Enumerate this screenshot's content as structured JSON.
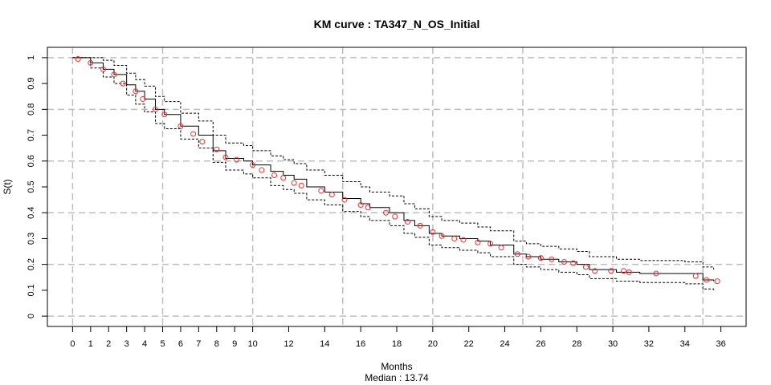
{
  "chart_data": {
    "type": "line",
    "title": "KM curve : TA347_N_OS_Initial",
    "xlabel": "Months",
    "ylabel": "S(t)",
    "subtitle": "Median : 13.74",
    "xlim": [
      -1.4,
      37.4
    ],
    "ylim": [
      -0.04,
      1.04
    ],
    "x_ticks": [
      0,
      1,
      2,
      3,
      4,
      5,
      6,
      7,
      8,
      9,
      10,
      12,
      14,
      16,
      18,
      20,
      22,
      24,
      26,
      28,
      30,
      32,
      34,
      36
    ],
    "y_ticks": [
      0,
      0.1,
      0.2,
      0.3,
      0.4,
      0.5,
      0.6,
      0.7,
      0.8,
      0.9,
      1
    ],
    "x_gridlines": [
      0,
      5,
      10,
      15,
      20,
      25,
      30,
      35
    ],
    "y_gridlines": [
      0,
      0.2,
      0.4,
      0.6,
      0.8,
      1
    ],
    "grid": true,
    "legend": "none",
    "colors": {
      "curve": "#000000",
      "ci": "#000000",
      "censor": "#e8312f",
      "grid": "#bebebe",
      "frame": "#000000"
    },
    "series": [
      {
        "style": "step",
        "x": [
          0,
          1.0,
          1.7,
          2.3,
          3.0,
          3.5,
          4.0,
          4.6,
          5.1,
          6.0,
          7.0,
          7.8,
          8.5,
          9.5,
          10.0,
          11.0,
          11.7,
          12.3,
          13.0,
          14.0,
          15.0,
          16.0,
          16.5,
          17.6,
          18.4,
          19.0,
          19.8,
          20.5,
          21.5,
          22.5,
          23.2,
          24.5,
          25.2,
          26.0,
          27.0,
          28.0,
          28.7,
          30.2,
          31.5,
          34.0,
          35.0,
          35.6
        ],
        "y": [
          1.0,
          0.98,
          0.955,
          0.935,
          0.895,
          0.87,
          0.84,
          0.8,
          0.78,
          0.735,
          0.7,
          0.64,
          0.61,
          0.6,
          0.585,
          0.56,
          0.545,
          0.53,
          0.5,
          0.48,
          0.455,
          0.435,
          0.42,
          0.4,
          0.37,
          0.35,
          0.32,
          0.31,
          0.3,
          0.29,
          0.275,
          0.24,
          0.23,
          0.22,
          0.21,
          0.2,
          0.18,
          0.17,
          0.165,
          0.165,
          0.14,
          0.135
        ]
      },
      {
        "style": "step-dashed",
        "x": [
          0,
          1.0,
          1.7,
          2.3,
          3.0,
          3.5,
          4.0,
          4.6,
          5.1,
          6.0,
          7.0,
          7.8,
          8.5,
          9.5,
          10.0,
          11.0,
          11.7,
          12.3,
          13.0,
          14.0,
          15.0,
          16.0,
          16.5,
          17.6,
          18.4,
          19.0,
          19.8,
          20.5,
          21.5,
          22.5,
          23.2,
          24.5,
          25.2,
          26.0,
          27.0,
          28.0,
          28.7,
          30.2,
          31.5,
          34.0,
          35.0,
          35.6
        ],
        "y": [
          1.0,
          1.0,
          0.99,
          0.97,
          0.94,
          0.915,
          0.89,
          0.85,
          0.83,
          0.785,
          0.755,
          0.7,
          0.67,
          0.66,
          0.64,
          0.62,
          0.605,
          0.59,
          0.565,
          0.545,
          0.52,
          0.5,
          0.48,
          0.465,
          0.435,
          0.415,
          0.385,
          0.37,
          0.36,
          0.345,
          0.33,
          0.29,
          0.28,
          0.27,
          0.26,
          0.25,
          0.23,
          0.22,
          0.215,
          0.21,
          0.19,
          0.18
        ]
      },
      {
        "style": "step-dashed",
        "x": [
          0,
          1.0,
          1.7,
          2.3,
          3.0,
          3.5,
          4.0,
          4.6,
          5.1,
          6.0,
          7.0,
          7.8,
          8.5,
          9.5,
          10.0,
          11.0,
          11.7,
          12.3,
          13.0,
          14.0,
          15.0,
          16.0,
          16.5,
          17.6,
          18.4,
          19.0,
          19.8,
          20.5,
          21.5,
          22.5,
          23.2,
          24.5,
          25.2,
          26.0,
          27.0,
          28.0,
          28.7,
          30.2,
          31.5,
          34.0,
          35.0,
          35.6
        ],
        "y": [
          1.0,
          0.96,
          0.925,
          0.9,
          0.855,
          0.82,
          0.79,
          0.745,
          0.725,
          0.685,
          0.65,
          0.595,
          0.565,
          0.55,
          0.535,
          0.505,
          0.49,
          0.475,
          0.45,
          0.43,
          0.405,
          0.385,
          0.37,
          0.35,
          0.32,
          0.305,
          0.275,
          0.265,
          0.255,
          0.245,
          0.23,
          0.2,
          0.19,
          0.18,
          0.17,
          0.16,
          0.145,
          0.135,
          0.13,
          0.125,
          0.105,
          0.095
        ]
      },
      {
        "style": "censor-points",
        "x": [
          0.3,
          1.0,
          1.7,
          2.3,
          2.8,
          3.5,
          3.9,
          4.6,
          5.1,
          6.0,
          6.7,
          7.2,
          8.0,
          8.5,
          9.1,
          10.0,
          10.5,
          11.2,
          11.7,
          12.3,
          12.7,
          13.8,
          14.4,
          15.1,
          16.0,
          16.4,
          17.4,
          17.9,
          18.6,
          19.3,
          20.0,
          20.5,
          21.2,
          21.7,
          22.5,
          23.2,
          23.8,
          24.7,
          25.3,
          26.0,
          26.6,
          27.3,
          27.8,
          28.5,
          29.0,
          29.9,
          30.6,
          30.9,
          32.4,
          34.6,
          35.2,
          35.8
        ],
        "y": [
          0.995,
          0.98,
          0.955,
          0.935,
          0.9,
          0.87,
          0.84,
          0.8,
          0.78,
          0.735,
          0.705,
          0.675,
          0.645,
          0.615,
          0.605,
          0.585,
          0.565,
          0.545,
          0.535,
          0.515,
          0.505,
          0.485,
          0.47,
          0.45,
          0.43,
          0.42,
          0.4,
          0.385,
          0.365,
          0.35,
          0.325,
          0.31,
          0.3,
          0.295,
          0.285,
          0.28,
          0.265,
          0.24,
          0.23,
          0.225,
          0.22,
          0.21,
          0.205,
          0.19,
          0.175,
          0.175,
          0.175,
          0.17,
          0.165,
          0.155,
          0.14,
          0.135
        ]
      }
    ]
  }
}
